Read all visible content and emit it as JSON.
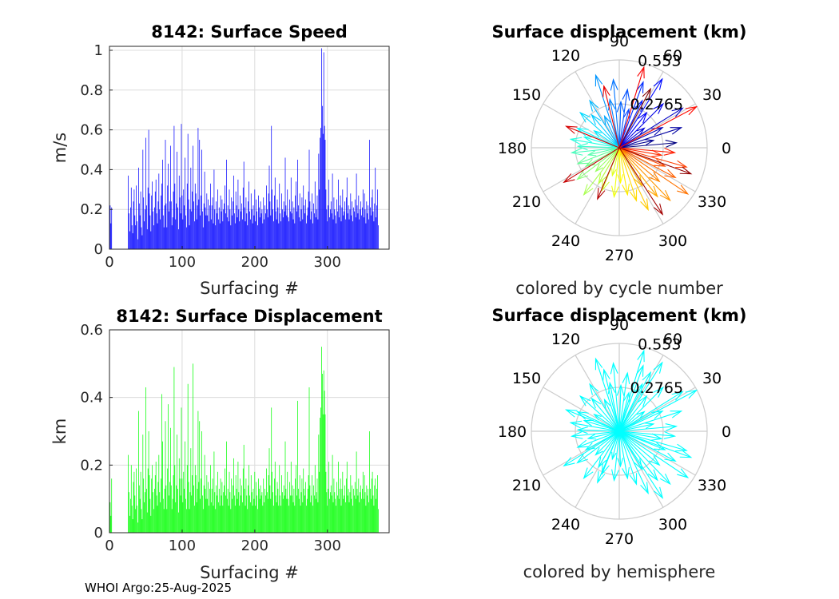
{
  "footer": "WHOI Argo:25-Aug-2025",
  "colors": {
    "speed_bars": "#0000ff",
    "disp_bars": "#00ff00",
    "hemisphere": "#00ffff",
    "grid": "#dcdcdc",
    "polar_grid": "#cccccc"
  },
  "chart_data": [
    {
      "id": "speed",
      "type": "bar",
      "title": "8142: Surface Speed",
      "xlabel": "Surfacing #",
      "ylabel": "m/s",
      "xlim": [
        0,
        385
      ],
      "ylim": [
        0,
        1.02
      ],
      "xticks": [
        "0",
        "100",
        "200",
        "300"
      ],
      "yticks": [
        "0",
        "0.2",
        "0.4",
        "0.6",
        "0.8",
        "1"
      ],
      "grid": true,
      "x_start": 1,
      "values": [
        0.22,
        0.13,
        0.21,
        0,
        0,
        0,
        0,
        0,
        0,
        0,
        0,
        0,
        0,
        0,
        0,
        0,
        0,
        0,
        0,
        0,
        0,
        0,
        0,
        0,
        0,
        0.37,
        0.18,
        0.09,
        0.21,
        0.31,
        0.12,
        0.08,
        0.24,
        0.3,
        0.17,
        0.12,
        0.32,
        0.14,
        0.05,
        0.41,
        0.23,
        0.17,
        0.29,
        0.11,
        0.07,
        0.5,
        0.26,
        0.14,
        0.2,
        0.56,
        0.22,
        0.1,
        0.31,
        0.6,
        0.28,
        0.17,
        0.09,
        0.27,
        0.34,
        0.19,
        0.12,
        0.21,
        0.29,
        0.35,
        0.18,
        0.13,
        0.24,
        0.38,
        0.2,
        0.15,
        0.27,
        0.33,
        0.45,
        0.17,
        0.11,
        0.22,
        0.55,
        0.23,
        0.11,
        0.32,
        0.43,
        0.19,
        0.24,
        0.52,
        0.24,
        0.12,
        0.16,
        0.29,
        0.62,
        0.33,
        0.15,
        0.23,
        0.49,
        0.21,
        0.1,
        0.37,
        0.26,
        0.18,
        0.63,
        0.27,
        0.15,
        0.3,
        0.22,
        0.46,
        0.17,
        0.11,
        0.33,
        0.58,
        0.25,
        0.12,
        0.2,
        0.41,
        0.19,
        0.29,
        0.52,
        0.24,
        0.14,
        0.33,
        0.28,
        0.15,
        0.22,
        0.61,
        0.25,
        0.55,
        0.17,
        0.27,
        0.5,
        0.19,
        0.11,
        0.23,
        0.39,
        0.21,
        0.17,
        0.28,
        0.17,
        0.25,
        0.14,
        0.22,
        0.33,
        0.15,
        0.22,
        0.26,
        0.13,
        0.4,
        0.2,
        0.12,
        0.24,
        0.18,
        0.3,
        0.15,
        0.21,
        0.13,
        0.27,
        0.19,
        0.25,
        0.14,
        0.2,
        0.23,
        0.32,
        0.18,
        0.45,
        0.16,
        0.22,
        0.14,
        0.3,
        0.2,
        0.12,
        0.26,
        0.17,
        0.24,
        0.37,
        0.18,
        0.13,
        0.29,
        0.22,
        0.16,
        0.35,
        0.2,
        0.14,
        0.27,
        0.19,
        0.23,
        0.15,
        0.31,
        0.44,
        0.21,
        0.14,
        0.26,
        0.18,
        0.12,
        0.24,
        0.34,
        0.19,
        0.15,
        0.28,
        0.2,
        0.13,
        0.22,
        0.17,
        0.3,
        0.14,
        0.25,
        0.19,
        0.12,
        0.27,
        0.21,
        0.16,
        0.24,
        0.18,
        0.2,
        0.13,
        0.26,
        0.15,
        0.22,
        0.18,
        0.32,
        0.2,
        0.16,
        0.28,
        0.42,
        0.24,
        0.17,
        0.62,
        0.3,
        0.2,
        0.14,
        0.27,
        0.36,
        0.19,
        0.15,
        0.25,
        0.21,
        0.13,
        0.33,
        0.18,
        0.14,
        0.28,
        0.2,
        0.16,
        0.24,
        0.19,
        0.46,
        0.22,
        0.17,
        0.3,
        0.16,
        0.14,
        0.25,
        0.19,
        0.36,
        0.18,
        0.24,
        0.15,
        0.21,
        0.13,
        0.27,
        0.34,
        0.19,
        0.45,
        0.22,
        0.16,
        0.28,
        0.14,
        0.2,
        0.26,
        0.15,
        0.32,
        0.22,
        0.18,
        0.25,
        0.13,
        0.17,
        0.21,
        0.29,
        0.5,
        0.24,
        0.15,
        0.19,
        0.28,
        0.13,
        0.23,
        0.18,
        0.34,
        0.16,
        0.2,
        0.27,
        0.15,
        0.48,
        0.3,
        0.56,
        0.61,
        1.01,
        0.72,
        0.58,
        0.99,
        0.62,
        0.55,
        0.3,
        0.2,
        0.14,
        0.22,
        0.35,
        0.16,
        0.2,
        0.24,
        0.18,
        0.38,
        0.15,
        0.26,
        0.2,
        0.17,
        0.13,
        0.25,
        0.19,
        0.35,
        0.16,
        0.22,
        0.27,
        0.14,
        0.21,
        0.3,
        0.17,
        0.19,
        0.24,
        0.15,
        0.26,
        0.36,
        0.18,
        0.22,
        0.15,
        0.2,
        0.28,
        0.17,
        0.24,
        0.14,
        0.21,
        0.19,
        0.25,
        0.16,
        0.38,
        0.22,
        0.18,
        0.27,
        0.15,
        0.2,
        0.24,
        0.17,
        0.21,
        0.3,
        0.16,
        0.28,
        0.2,
        0.13,
        0.24,
        0.18,
        0.22,
        0.15,
        0.55,
        0.21,
        0.17,
        0.26,
        0.3,
        0.19,
        0.14,
        0.23,
        0.41,
        0.16,
        0.22,
        0.3,
        0.12
      ]
    },
    {
      "id": "polar_cycle",
      "type": "polar-compass",
      "title": "Surface displacement (km)",
      "caption": "colored by cycle number",
      "angle_ticks": [
        "0",
        "30",
        "60",
        "90",
        "120",
        "150",
        "180",
        "210",
        "240",
        "270",
        "300",
        "330"
      ],
      "radial_ticks": [
        "0.2765",
        "0.553"
      ],
      "rmax": 0.553,
      "color_mode": "jet-by-cycle"
    },
    {
      "id": "displacement",
      "type": "bar",
      "title": "8142: Surface Displacement",
      "xlabel": "Surfacing #",
      "ylabel": "km",
      "xlim": [
        0,
        385
      ],
      "ylim": [
        0,
        0.6
      ],
      "xticks": [
        "0",
        "100",
        "200",
        "300"
      ],
      "yticks": [
        "0",
        "0.2",
        "0.4",
        "0.6"
      ],
      "grid": true,
      "x_start": 1,
      "values": [
        0.09,
        0.05,
        0.16,
        0,
        0,
        0,
        0,
        0,
        0,
        0,
        0,
        0,
        0,
        0,
        0,
        0,
        0,
        0,
        0,
        0,
        0,
        0,
        0,
        0,
        0,
        0.23,
        0.12,
        0.05,
        0.1,
        0.2,
        0.08,
        0.04,
        0.15,
        0.18,
        0.11,
        0.07,
        0.19,
        0.08,
        0.03,
        0.36,
        0.14,
        0.1,
        0.18,
        0.07,
        0.04,
        0.29,
        0.16,
        0.09,
        0.12,
        0.43,
        0.13,
        0.06,
        0.19,
        0.3,
        0.17,
        0.1,
        0.05,
        0.16,
        0.2,
        0.12,
        0.07,
        0.13,
        0.17,
        0.21,
        0.11,
        0.08,
        0.15,
        0.23,
        0.12,
        0.09,
        0.16,
        0.41,
        0.27,
        0.1,
        0.07,
        0.13,
        0.33,
        0.14,
        0.07,
        0.19,
        0.38,
        0.11,
        0.15,
        0.31,
        0.14,
        0.07,
        0.1,
        0.17,
        0.49,
        0.2,
        0.09,
        0.14,
        0.29,
        0.13,
        0.06,
        0.22,
        0.16,
        0.11,
        0.37,
        0.16,
        0.09,
        0.18,
        0.13,
        0.27,
        0.1,
        0.07,
        0.2,
        0.44,
        0.15,
        0.07,
        0.12,
        0.25,
        0.11,
        0.17,
        0.5,
        0.14,
        0.08,
        0.2,
        0.17,
        0.09,
        0.13,
        0.36,
        0.15,
        0.33,
        0.1,
        0.16,
        0.3,
        0.11,
        0.07,
        0.14,
        0.23,
        0.13,
        0.1,
        0.17,
        0.1,
        0.15,
        0.08,
        0.13,
        0.2,
        0.09,
        0.13,
        0.16,
        0.08,
        0.24,
        0.12,
        0.07,
        0.14,
        0.11,
        0.18,
        0.09,
        0.13,
        0.08,
        0.16,
        0.11,
        0.15,
        0.08,
        0.12,
        0.14,
        0.19,
        0.11,
        0.27,
        0.1,
        0.13,
        0.08,
        0.18,
        0.12,
        0.07,
        0.16,
        0.1,
        0.14,
        0.22,
        0.11,
        0.08,
        0.17,
        0.13,
        0.1,
        0.21,
        0.12,
        0.08,
        0.16,
        0.11,
        0.14,
        0.09,
        0.19,
        0.26,
        0.13,
        0.08,
        0.16,
        0.11,
        0.07,
        0.14,
        0.2,
        0.11,
        0.09,
        0.17,
        0.12,
        0.08,
        0.13,
        0.1,
        0.18,
        0.08,
        0.15,
        0.11,
        0.07,
        0.16,
        0.13,
        0.1,
        0.14,
        0.11,
        0.12,
        0.08,
        0.16,
        0.09,
        0.13,
        0.11,
        0.19,
        0.12,
        0.1,
        0.17,
        0.25,
        0.14,
        0.1,
        0.37,
        0.18,
        0.12,
        0.08,
        0.16,
        0.21,
        0.11,
        0.09,
        0.15,
        0.13,
        0.08,
        0.2,
        0.11,
        0.08,
        0.17,
        0.12,
        0.1,
        0.14,
        0.11,
        0.27,
        0.13,
        0.1,
        0.18,
        0.1,
        0.08,
        0.15,
        0.11,
        0.21,
        0.11,
        0.14,
        0.09,
        0.13,
        0.08,
        0.16,
        0.2,
        0.11,
        0.39,
        0.13,
        0.1,
        0.17,
        0.08,
        0.12,
        0.16,
        0.09,
        0.19,
        0.13,
        0.11,
        0.15,
        0.08,
        0.1,
        0.13,
        0.17,
        0.43,
        0.14,
        0.09,
        0.11,
        0.17,
        0.08,
        0.14,
        0.11,
        0.2,
        0.1,
        0.12,
        0.16,
        0.09,
        0.29,
        0.18,
        0.34,
        0.37,
        0.55,
        0.47,
        0.35,
        0.48,
        0.42,
        0.35,
        0.18,
        0.12,
        0.08,
        0.13,
        0.21,
        0.1,
        0.12,
        0.14,
        0.11,
        0.23,
        0.09,
        0.16,
        0.12,
        0.1,
        0.08,
        0.15,
        0.11,
        0.21,
        0.1,
        0.13,
        0.16,
        0.08,
        0.13,
        0.18,
        0.1,
        0.11,
        0.14,
        0.09,
        0.16,
        0.21,
        0.11,
        0.13,
        0.09,
        0.12,
        0.17,
        0.1,
        0.14,
        0.08,
        0.13,
        0.11,
        0.15,
        0.1,
        0.24,
        0.13,
        0.11,
        0.16,
        0.09,
        0.12,
        0.14,
        0.1,
        0.13,
        0.18,
        0.1,
        0.17,
        0.12,
        0.08,
        0.14,
        0.11,
        0.13,
        0.09,
        0.3,
        0.13,
        0.1,
        0.16,
        0.18,
        0.11,
        0.08,
        0.14,
        0.16,
        0.1,
        0.13,
        0.17,
        0.07
      ]
    },
    {
      "id": "polar_hemi",
      "type": "polar-compass",
      "title": "Surface displacement (km)",
      "caption": "colored by hemisphere",
      "angle_ticks": [
        "0",
        "30",
        "60",
        "90",
        "120",
        "150",
        "180",
        "210",
        "240",
        "270",
        "300",
        "330"
      ],
      "radial_ticks": [
        "0.2765",
        "0.553"
      ],
      "rmax": 0.553,
      "color_mode": "single"
    }
  ],
  "vectors": [
    {
      "deg": 5,
      "r": 0.36
    },
    {
      "deg": 12,
      "r": 0.22
    },
    {
      "deg": 18,
      "r": 0.41
    },
    {
      "deg": 25,
      "r": 0.3
    },
    {
      "deg": 32,
      "r": 0.47
    },
    {
      "deg": 38,
      "r": 0.2
    },
    {
      "deg": 45,
      "r": 0.39
    },
    {
      "deg": 52,
      "r": 0.28
    },
    {
      "deg": 58,
      "r": 0.51
    },
    {
      "deg": 64,
      "r": 0.33
    },
    {
      "deg": 70,
      "r": 0.44
    },
    {
      "deg": 76,
      "r": 0.25
    },
    {
      "deg": 82,
      "r": 0.37
    },
    {
      "deg": 88,
      "r": 0.29
    },
    {
      "deg": 95,
      "r": 0.43
    },
    {
      "deg": 101,
      "r": 0.31
    },
    {
      "deg": 108,
      "r": 0.48
    },
    {
      "deg": 115,
      "r": 0.22
    },
    {
      "deg": 122,
      "r": 0.35
    },
    {
      "deg": 130,
      "r": 0.27
    },
    {
      "deg": 138,
      "r": 0.33
    },
    {
      "deg": 146,
      "r": 0.19
    },
    {
      "deg": 155,
      "r": 0.29
    },
    {
      "deg": 163,
      "r": 0.23
    },
    {
      "deg": 170,
      "r": 0.31
    },
    {
      "deg": 178,
      "r": 0.26
    },
    {
      "deg": 186,
      "r": 0.3
    },
    {
      "deg": 193,
      "r": 0.2
    },
    {
      "deg": 201,
      "r": 0.28
    },
    {
      "deg": 209,
      "r": 0.24
    },
    {
      "deg": 217,
      "r": 0.33
    },
    {
      "deg": 225,
      "r": 0.21
    },
    {
      "deg": 233,
      "r": 0.37
    },
    {
      "deg": 240,
      "r": 0.26
    },
    {
      "deg": 248,
      "r": 0.29
    },
    {
      "deg": 256,
      "r": 0.18
    },
    {
      "deg": 264,
      "r": 0.31
    },
    {
      "deg": 272,
      "r": 0.22
    },
    {
      "deg": 280,
      "r": 0.3
    },
    {
      "deg": 288,
      "r": 0.35
    },
    {
      "deg": 295,
      "r": 0.43
    },
    {
      "deg": 301,
      "r": 0.28
    },
    {
      "deg": 308,
      "r": 0.39
    },
    {
      "deg": 314,
      "r": 0.46
    },
    {
      "deg": 320,
      "r": 0.33
    },
    {
      "deg": 326,
      "r": 0.52
    },
    {
      "deg": 332,
      "r": 0.4
    },
    {
      "deg": 338,
      "r": 0.31
    },
    {
      "deg": 344,
      "r": 0.44
    },
    {
      "deg": 350,
      "r": 0.27
    },
    {
      "deg": 355,
      "r": 0.35
    },
    {
      "deg": 28,
      "r": 0.55
    },
    {
      "deg": 73,
      "r": 0.53
    },
    {
      "deg": 104,
      "r": 0.4
    },
    {
      "deg": 158,
      "r": 0.36
    },
    {
      "deg": 212,
      "r": 0.41
    },
    {
      "deg": 247,
      "r": 0.35
    },
    {
      "deg": 303,
      "r": 0.5
    },
    {
      "deg": 340,
      "r": 0.48
    },
    {
      "deg": 62,
      "r": 0.42
    }
  ]
}
